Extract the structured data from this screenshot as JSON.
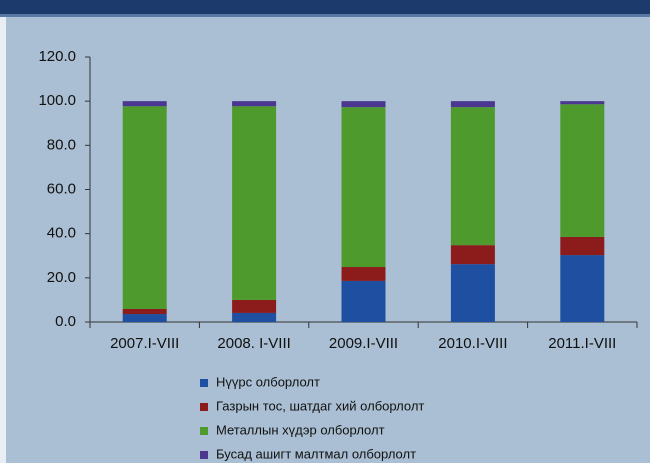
{
  "chart_data": {
    "type": "stacked_bar",
    "categories": [
      "2007.I-VIII",
      "2008. I-VIII",
      "2009.I-VIII",
      "2010.I-VIII",
      "2011.I-VIII"
    ],
    "series": [
      {
        "name": "Нүүрс олборлолт",
        "color": "#1f4fa0",
        "values": [
          3.6,
          4.1,
          18.6,
          26.2,
          30.3
        ]
      },
      {
        "name": "Газрын тос, шатдаг хий олборлолт",
        "color": "#8c1c1c",
        "values": [
          2.3,
          5.9,
          6.3,
          8.6,
          8.2
        ]
      },
      {
        "name": "Металлын хүдэр олборлолт",
        "color": "#4f9a2c",
        "values": [
          91.8,
          87.7,
          72.4,
          62.5,
          60.1
        ]
      },
      {
        "name": "Бусад ашигт малтмал олборлолт",
        "color": "#4b3690",
        "values": [
          2.3,
          2.3,
          2.7,
          2.7,
          1.4
        ]
      }
    ],
    "ylim": [
      0,
      120
    ],
    "yticks": [
      {
        "value": 0,
        "label": "0.0"
      },
      {
        "value": 20,
        "label": "20.0"
      },
      {
        "value": 40,
        "label": "40.0"
      },
      {
        "value": 60,
        "label": "60.0"
      },
      {
        "value": 80,
        "label": "80.0"
      },
      {
        "value": 100,
        "label": "100.0"
      },
      {
        "value": 120,
        "label": "120.0"
      }
    ],
    "legend": "bottom"
  }
}
